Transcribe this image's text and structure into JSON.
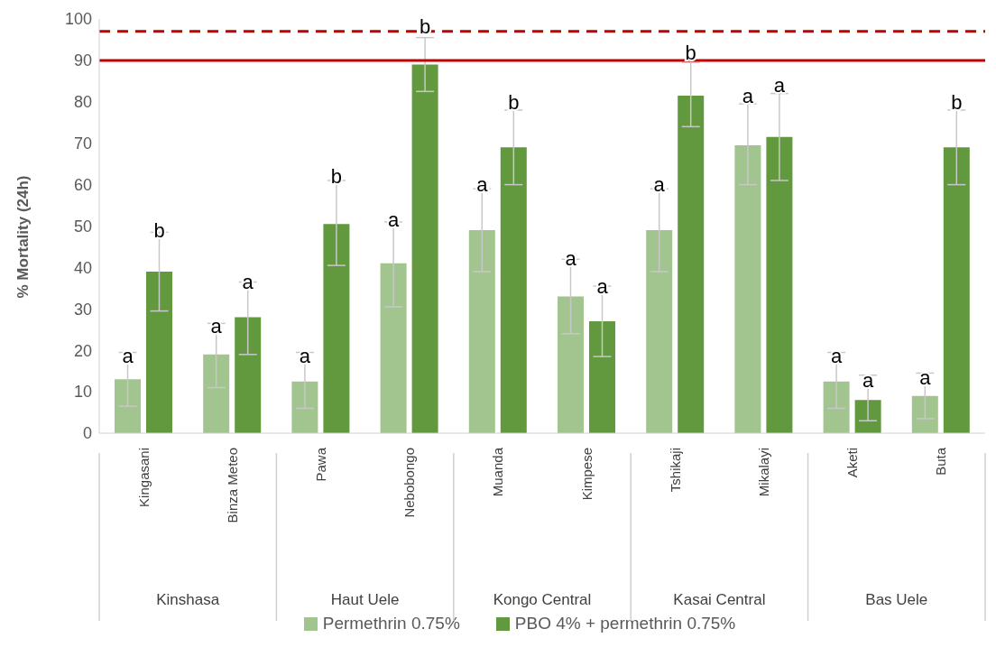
{
  "chart_data": {
    "type": "bar",
    "ylabel": "% Mortality (24h)",
    "categories": [
      "Kingasani",
      "Binza Meteo",
      "Pawa",
      "Nebobongo",
      "Muanda",
      "Kimpese",
      "Tshikaji",
      "Mikalayi",
      "Aketi",
      "Buta"
    ],
    "series": [
      {
        "name": "Permethrin 0.75%",
        "color": "#a2c48e",
        "values": [
          13,
          19,
          12.5,
          41,
          49,
          33,
          49,
          69.5,
          12.5,
          9
        ],
        "errors": [
          [
            6.5,
            19.5
          ],
          [
            11,
            26.5
          ],
          [
            6,
            19.5
          ],
          [
            30.5,
            51
          ],
          [
            39,
            59
          ],
          [
            24,
            42
          ],
          [
            39,
            59
          ],
          [
            60,
            79.5
          ],
          [
            6,
            19.5
          ],
          [
            3.5,
            14.5
          ]
        ],
        "value_labels": [
          "a",
          "a",
          "a",
          "a",
          "a",
          "a",
          "a",
          "a",
          "a",
          "a"
        ]
      },
      {
        "name": "PBO 4% + permethrin 0.75%",
        "color": "#62993e",
        "values": [
          39,
          28,
          50.5,
          89,
          69,
          27,
          81.5,
          71.5,
          8,
          69
        ],
        "errors": [
          [
            29.5,
            48.5
          ],
          [
            19,
            36.5
          ],
          [
            40.5,
            61
          ],
          [
            82.5,
            95.5
          ],
          [
            60,
            78
          ],
          [
            18.5,
            35.5
          ],
          [
            74,
            89.5
          ],
          [
            61,
            82
          ],
          [
            3,
            14
          ],
          [
            60,
            78
          ]
        ],
        "value_labels": [
          "b",
          "a",
          "b",
          "b",
          "b",
          "a",
          "b",
          "a",
          "a",
          "b"
        ]
      }
    ],
    "annotations": [
      "Kinshasa",
      "Haut Uele",
      "Kongo Central",
      "Kasai Central",
      "Bas Uele"
    ],
    "ylim": [
      0,
      100
    ],
    "yticks": [
      0,
      10,
      20,
      30,
      40,
      50,
      60,
      70,
      80,
      90,
      100
    ],
    "ref_lines": [
      {
        "axis": "y",
        "value": 90,
        "color": "#c00000",
        "line_style": "solid"
      },
      {
        "axis": "y",
        "value": 97,
        "color": "#c00000",
        "line_style": "dashed"
      }
    ],
    "legend": "bottom",
    "grid": false
  }
}
